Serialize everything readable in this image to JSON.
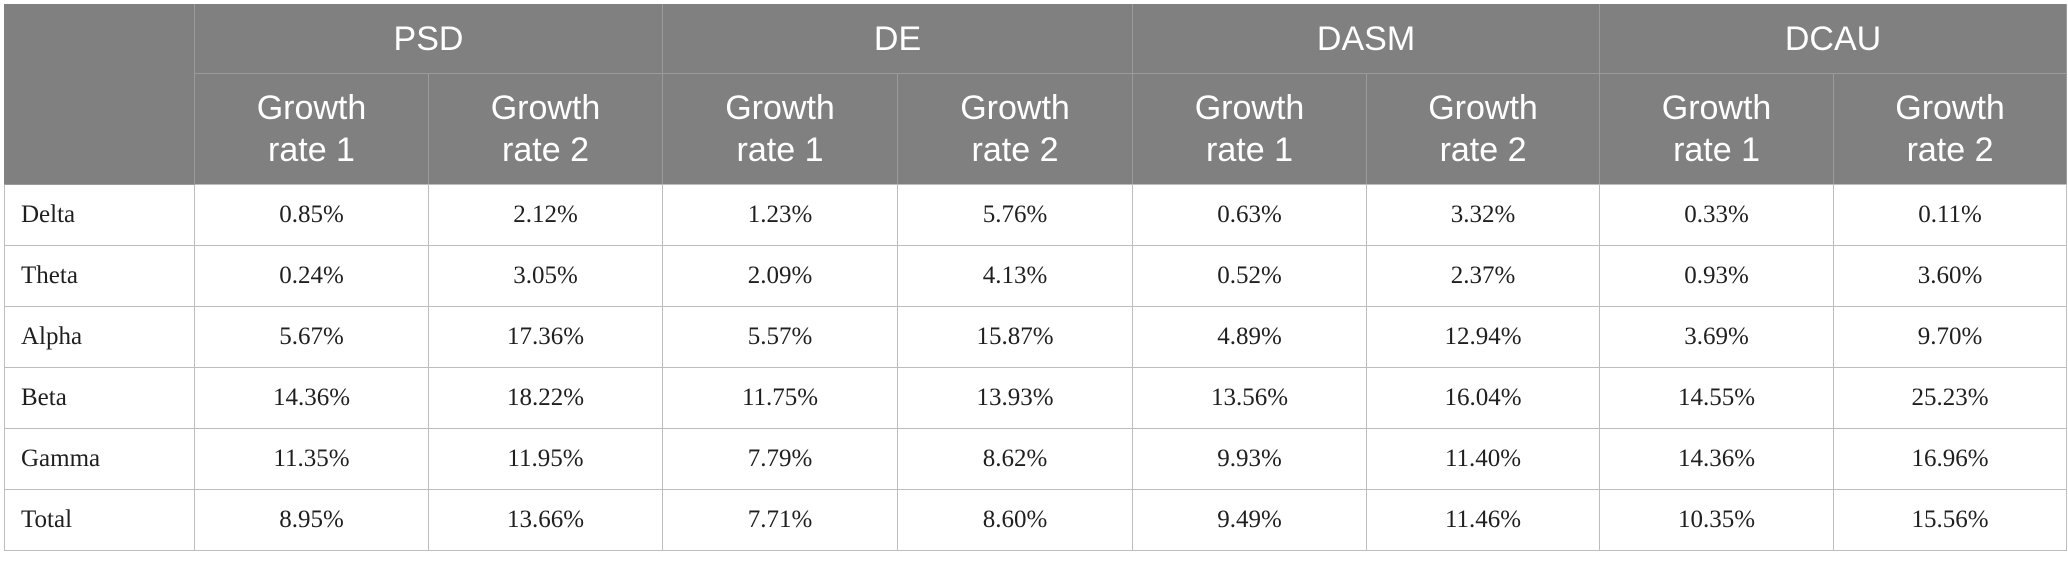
{
  "table": {
    "groups": [
      "PSD",
      "DE",
      "DASM",
      "DCAU"
    ],
    "sub_headers": [
      [
        "Growth",
        "rate 1"
      ],
      [
        "Growth",
        "rate 2"
      ],
      [
        "Growth",
        "rate 1"
      ],
      [
        "Growth",
        "rate 2"
      ],
      [
        "Growth",
        "rate 1"
      ],
      [
        "Growth",
        "rate 2"
      ],
      [
        "Growth",
        "rate 1"
      ],
      [
        "Growth",
        "rate 2"
      ]
    ],
    "rows": [
      {
        "label": "Delta",
        "values": [
          "0.85%",
          "2.12%",
          "1.23%",
          "5.76%",
          "0.63%",
          "3.32%",
          "0.33%",
          "0.11%"
        ]
      },
      {
        "label": "Theta",
        "values": [
          "0.24%",
          "3.05%",
          "2.09%",
          "4.13%",
          "0.52%",
          "2.37%",
          "0.93%",
          "3.60%"
        ]
      },
      {
        "label": "Alpha",
        "values": [
          "5.67%",
          "17.36%",
          "5.57%",
          "15.87%",
          "4.89%",
          "12.94%",
          "3.69%",
          "9.70%"
        ]
      },
      {
        "label": "Beta",
        "values": [
          "14.36%",
          "18.22%",
          "11.75%",
          "13.93%",
          "13.56%",
          "16.04%",
          "14.55%",
          "25.23%"
        ]
      },
      {
        "label": "Gamma",
        "values": [
          "11.35%",
          "11.95%",
          "7.79%",
          "8.62%",
          "9.93%",
          "11.40%",
          "14.36%",
          "16.96%"
        ]
      },
      {
        "label": "Total",
        "values": [
          "8.95%",
          "13.66%",
          "7.71%",
          "8.60%",
          "9.49%",
          "11.46%",
          "10.35%",
          "15.56%"
        ]
      }
    ]
  },
  "colors": {
    "header_bg": "#7f807f",
    "header_text": "#ffffff",
    "border": "#bdbdbd",
    "body_text": "#1f1f1f"
  }
}
